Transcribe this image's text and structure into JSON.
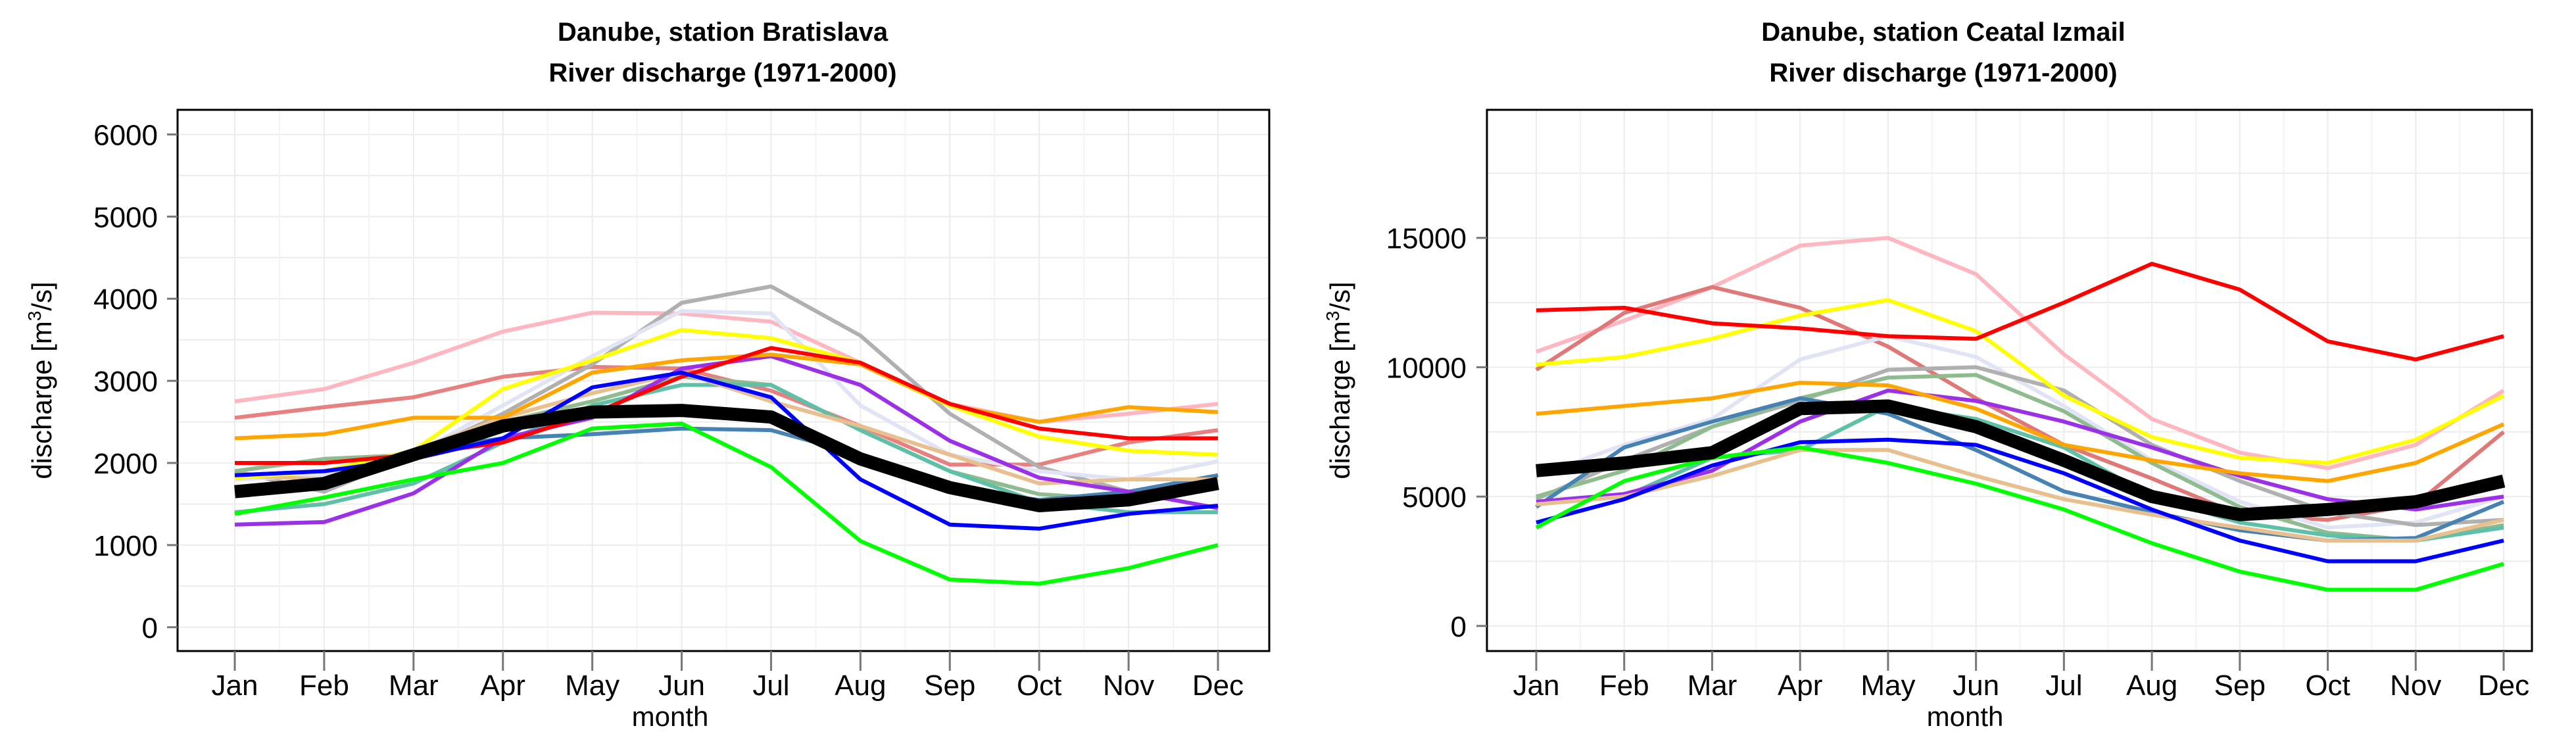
{
  "chart_data": [
    {
      "type": "line",
      "title": [
        "Danube, station Bratislava",
        "River discharge (1971-2000)"
      ],
      "xlabel": "month",
      "ylabel": "discharge [m³/s]",
      "ylabel_parts": {
        "pre": "discharge [m",
        "sup": "3",
        "post": "/s]"
      },
      "categories": [
        "Jan",
        "Feb",
        "Mar",
        "Apr",
        "May",
        "Jun",
        "Jul",
        "Aug",
        "Sep",
        "Oct",
        "Nov",
        "Dec"
      ],
      "yticks": [
        0,
        1000,
        2000,
        3000,
        4000,
        5000,
        6000
      ],
      "ylim": [
        -290,
        6300
      ],
      "grid": true,
      "series": [
        {
          "name": "pink",
          "color": "#FFB6C1",
          "values": [
            2750,
            2900,
            3220,
            3600,
            3830,
            3820,
            3720,
            3220,
            2720,
            2500,
            2600,
            2720
          ]
        },
        {
          "name": "lightcoral",
          "color": "#E88080",
          "values": [
            2550,
            2680,
            2800,
            3050,
            3170,
            3150,
            2880,
            2450,
            1980,
            1980,
            2250,
            2400
          ]
        },
        {
          "name": "darkgray",
          "color": "#B0B0B0",
          "values": [
            1900,
            1650,
            2100,
            2600,
            3200,
            3950,
            4150,
            3550,
            2600,
            1950,
            1650,
            1800
          ]
        },
        {
          "name": "lavender",
          "color": "#E0E4F4",
          "values": [
            1800,
            1850,
            2100,
            2700,
            3300,
            3850,
            3820,
            2700,
            2100,
            1900,
            1800,
            2020
          ]
        },
        {
          "name": "darkseagreen",
          "color": "#8FBC8F",
          "values": [
            1900,
            2050,
            2100,
            2500,
            2750,
            3050,
            2950,
            2400,
            1900,
            1620,
            1550,
            1800
          ]
        },
        {
          "name": "mediumaquamarine",
          "color": "#5FC0A8",
          "values": [
            1400,
            1500,
            1750,
            2250,
            2700,
            2950,
            2950,
            2400,
            1900,
            1520,
            1400,
            1400
          ]
        },
        {
          "name": "steelblue",
          "color": "#4682B4",
          "values": [
            1850,
            1900,
            2150,
            2300,
            2350,
            2420,
            2400,
            2100,
            1700,
            1550,
            1650,
            1850
          ]
        },
        {
          "name": "burlywood",
          "color": "#E8C090",
          "values": [
            1850,
            1800,
            2150,
            2550,
            2850,
            3100,
            2750,
            2450,
            2100,
            1750,
            1800,
            1800
          ]
        },
        {
          "name": "purple",
          "color": "#9B30E8",
          "values": [
            1250,
            1280,
            1630,
            2300,
            2550,
            3150,
            3300,
            2950,
            2270,
            1820,
            1650,
            1450
          ]
        },
        {
          "name": "orange",
          "color": "#FFA500",
          "values": [
            2300,
            2350,
            2550,
            2550,
            3100,
            3250,
            3320,
            3200,
            2700,
            2500,
            2680,
            2620
          ]
        },
        {
          "name": "yellow",
          "color": "#FFFF00",
          "values": [
            1820,
            1900,
            2150,
            2900,
            3250,
            3620,
            3520,
            3220,
            2700,
            2320,
            2150,
            2100
          ]
        },
        {
          "name": "red",
          "color": "#FF0000",
          "values": [
            2000,
            2000,
            2100,
            2250,
            2600,
            3050,
            3400,
            3220,
            2720,
            2420,
            2300,
            2300
          ]
        },
        {
          "name": "blue",
          "color": "#0000FF",
          "values": [
            1850,
            1900,
            2050,
            2300,
            2920,
            3100,
            2800,
            1800,
            1250,
            1200,
            1380,
            1480
          ]
        },
        {
          "name": "green",
          "color": "#00FF00",
          "values": [
            1380,
            1580,
            1800,
            2000,
            2420,
            2480,
            1950,
            1050,
            580,
            530,
            720,
            1000
          ]
        },
        {
          "name": "mean",
          "color": "#000000",
          "bold": true,
          "values": [
            1650,
            1750,
            2100,
            2450,
            2620,
            2640,
            2560,
            2050,
            1700,
            1480,
            1550,
            1750
          ]
        }
      ]
    },
    {
      "type": "line",
      "title": [
        "Danube, station Ceatal Izmail",
        "River discharge (1971-2000)"
      ],
      "xlabel": "month",
      "ylabel": "discharge [m³/s]",
      "ylabel_parts": {
        "pre": "discharge [m",
        "sup": "3",
        "post": "/s]"
      },
      "categories": [
        "Jan",
        "Feb",
        "Mar",
        "Apr",
        "May",
        "Jun",
        "Jul",
        "Aug",
        "Sep",
        "Oct",
        "Nov",
        "Dec"
      ],
      "yticks": [
        0,
        5000,
        10000,
        15000
      ],
      "ylim": [
        -970,
        19950
      ],
      "grid": true,
      "series": [
        {
          "name": "pink",
          "color": "#FFB6C1",
          "values": [
            10600,
            11800,
            13100,
            14700,
            15000,
            13600,
            10500,
            8000,
            6700,
            6100,
            7000,
            9100
          ]
        },
        {
          "name": "lightcoral",
          "color": "#E07878",
          "values": [
            9900,
            12100,
            13100,
            12300,
            10800,
            8800,
            7000,
            5700,
            4300,
            4100,
            4700,
            7500
          ]
        },
        {
          "name": "lavender",
          "color": "#E0E4F4",
          "values": [
            5800,
            7000,
            8000,
            10300,
            11200,
            10400,
            8500,
            6400,
            4800,
            3800,
            4000,
            5000
          ]
        },
        {
          "name": "darkgray",
          "color": "#B0B0B0",
          "values": [
            4900,
            6400,
            7700,
            8700,
            9900,
            10000,
            9100,
            7000,
            5600,
            4400,
            3900,
            4100
          ]
        },
        {
          "name": "darkseagreen",
          "color": "#8FBC8F",
          "values": [
            5000,
            6000,
            7700,
            8800,
            9600,
            9700,
            8300,
            6300,
            4600,
            3600,
            3300,
            3900
          ]
        },
        {
          "name": "mediumaquamarine",
          "color": "#5FC0A8",
          "values": [
            4700,
            5000,
            6500,
            6800,
            8500,
            8000,
            6900,
            5000,
            4000,
            3500,
            3300,
            3800
          ]
        },
        {
          "name": "steelblue",
          "color": "#4682B4",
          "values": [
            4600,
            6900,
            7900,
            8800,
            8200,
            6800,
            5200,
            4400,
            3700,
            3300,
            3400,
            4800
          ]
        },
        {
          "name": "purple",
          "color": "#9B30E8",
          "values": [
            4800,
            5100,
            6000,
            7900,
            9100,
            8700,
            7900,
            6900,
            5800,
            4900,
            4500,
            5000
          ]
        },
        {
          "name": "burlywood",
          "color": "#E8C090",
          "values": [
            4700,
            5000,
            5800,
            6800,
            6800,
            5800,
            4900,
            4300,
            3800,
            3300,
            3300,
            4100
          ]
        },
        {
          "name": "orange",
          "color": "#FFA500",
          "values": [
            8200,
            8500,
            8800,
            9400,
            9300,
            8400,
            7000,
            6400,
            5900,
            5600,
            6300,
            7800
          ]
        },
        {
          "name": "yellow",
          "color": "#FFFF00",
          "values": [
            10100,
            10400,
            11100,
            12000,
            12600,
            11400,
            8900,
            7300,
            6500,
            6300,
            7200,
            8900
          ]
        },
        {
          "name": "blue",
          "color": "#0000FF",
          "values": [
            4000,
            4900,
            6200,
            7100,
            7200,
            7000,
            5900,
            4500,
            3300,
            2500,
            2500,
            3300
          ]
        },
        {
          "name": "green",
          "color": "#00FF00",
          "values": [
            3800,
            5600,
            6500,
            6900,
            6300,
            5500,
            4500,
            3200,
            2100,
            1400,
            1400,
            2400
          ]
        },
        {
          "name": "red",
          "color": "#FF0000",
          "values": [
            12200,
            12300,
            11700,
            11500,
            11200,
            11100,
            12500,
            14000,
            13000,
            11000,
            10300,
            11200
          ]
        },
        {
          "name": "mean",
          "color": "#000000",
          "bold": true,
          "values": [
            6000,
            6300,
            6700,
            8400,
            8500,
            7700,
            6400,
            5000,
            4300,
            4500,
            4800,
            5600
          ]
        }
      ]
    }
  ]
}
